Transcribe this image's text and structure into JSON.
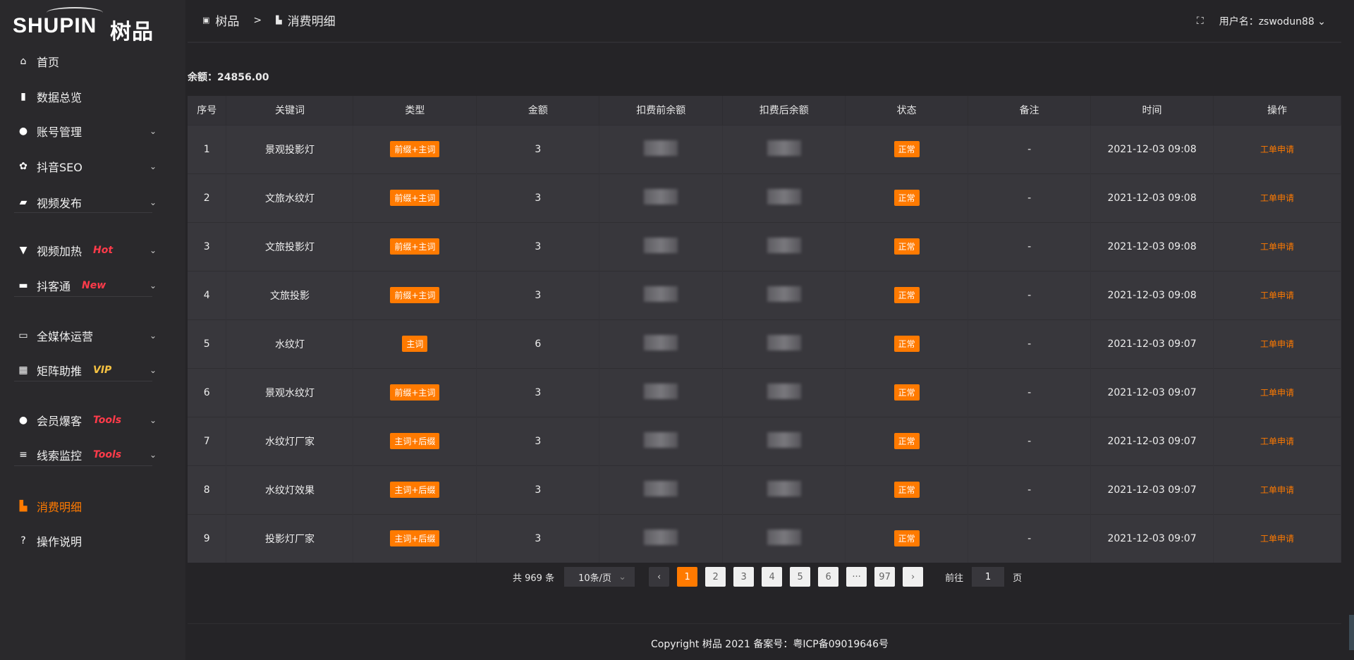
{
  "logo": {
    "text": "SHUPIN",
    "cn": "树品"
  },
  "sidebar": {
    "items": [
      {
        "label": "首页",
        "icon": "home-icon",
        "glyph": "⌂"
      },
      {
        "label": "数据总览",
        "icon": "bar-chart-icon",
        "glyph": "▮"
      },
      {
        "label": "账号管理",
        "icon": "user-icon",
        "glyph": "●",
        "chev": true
      },
      {
        "label": "抖音SEO",
        "icon": "gear-icon",
        "glyph": "✿",
        "chev": true
      },
      {
        "label": "视频发布",
        "icon": "video-icon",
        "glyph": "▰",
        "chev": true
      },
      {
        "label": "视频加热",
        "icon": "torch-icon",
        "glyph": "▼",
        "badge": "Hot",
        "chev": true
      },
      {
        "label": "抖客通",
        "icon": "chat-icon",
        "glyph": "▬",
        "badge": "New",
        "chev": true
      },
      {
        "label": "全媒体运营",
        "icon": "monitor-icon",
        "glyph": "▭",
        "chev": true
      },
      {
        "label": "矩阵助推",
        "icon": "grid-icon",
        "glyph": "▦",
        "badge": "VIP",
        "chev": true
      },
      {
        "label": "会员爆客",
        "icon": "user-icon",
        "glyph": "●",
        "badge": "Tools",
        "chev": true
      },
      {
        "label": "线索监控",
        "icon": "sliders-icon",
        "glyph": "≡",
        "badge": "Tools",
        "chev": true
      },
      {
        "label": "消费明细",
        "icon": "wallet-icon",
        "glyph": "▙",
        "active": true
      },
      {
        "label": "操作说明",
        "icon": "help-icon",
        "glyph": "?"
      }
    ]
  },
  "colors": {
    "accent": "#ff7a00",
    "hot": "#ff3b4a",
    "vip": "#f5c242"
  },
  "header": {
    "breadcrumb": [
      "树品",
      "消费明细"
    ],
    "sep": ">",
    "user_label": "用户名：zswodun88"
  },
  "balance": "余额：24856.00",
  "table": {
    "columns": [
      "序号",
      "关键词",
      "类型",
      "金额",
      "扣费前余额",
      "扣费后余额",
      "状态",
      "备注",
      "时间",
      "操作"
    ],
    "rows": [
      {
        "no": "1",
        "kw": "景观投影灯",
        "type": "前缀+主词",
        "amt": "3",
        "status": "正常",
        "note": "-",
        "time": "2021-12-03 09:08",
        "op": "工单申请"
      },
      {
        "no": "2",
        "kw": "文旅水纹灯",
        "type": "前缀+主词",
        "amt": "3",
        "status": "正常",
        "note": "-",
        "time": "2021-12-03 09:08",
        "op": "工单申请"
      },
      {
        "no": "3",
        "kw": "文旅投影灯",
        "type": "前缀+主词",
        "amt": "3",
        "status": "正常",
        "note": "-",
        "time": "2021-12-03 09:08",
        "op": "工单申请"
      },
      {
        "no": "4",
        "kw": "文旅投影",
        "type": "前缀+主词",
        "amt": "3",
        "status": "正常",
        "note": "-",
        "time": "2021-12-03 09:08",
        "op": "工单申请"
      },
      {
        "no": "5",
        "kw": "水纹灯",
        "type": "主词",
        "amt": "6",
        "status": "正常",
        "note": "-",
        "time": "2021-12-03 09:07",
        "op": "工单申请"
      },
      {
        "no": "6",
        "kw": "景观水纹灯",
        "type": "前缀+主词",
        "amt": "3",
        "status": "正常",
        "note": "-",
        "time": "2021-12-03 09:07",
        "op": "工单申请"
      },
      {
        "no": "7",
        "kw": "水纹灯厂家",
        "type": "主词+后缀",
        "amt": "3",
        "status": "正常",
        "note": "-",
        "time": "2021-12-03 09:07",
        "op": "工单申请"
      },
      {
        "no": "8",
        "kw": "水纹灯效果",
        "type": "主词+后缀",
        "amt": "3",
        "status": "正常",
        "note": "-",
        "time": "2021-12-03 09:07",
        "op": "工单申请"
      },
      {
        "no": "9",
        "kw": "投影灯厂家",
        "type": "主词+后缀",
        "amt": "3",
        "status": "正常",
        "note": "-",
        "time": "2021-12-03 09:07",
        "op": "工单申请"
      }
    ]
  },
  "pagination": {
    "total": "共 969 条",
    "page_size": "10条/页",
    "pages": [
      "1",
      "2",
      "3",
      "4",
      "5",
      "6",
      "···",
      "97"
    ],
    "current": "1",
    "goto_label": "前往",
    "goto_value": "1",
    "page_unit": "页"
  },
  "footer": "Copyright 树品 2021 备案号：粤ICP备09019646号"
}
